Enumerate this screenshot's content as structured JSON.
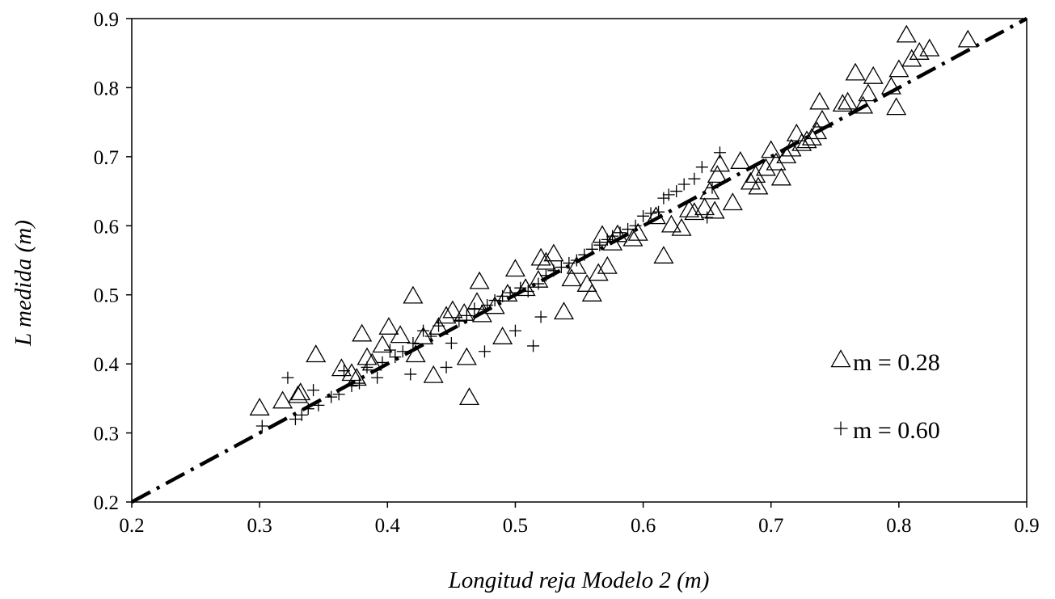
{
  "chart_data": {
    "type": "scatter",
    "xlabel": "Longitud reja Modelo 2 (m)",
    "ylabel": "L medida  (m)",
    "xlim": [
      0.2,
      0.9
    ],
    "ylim": [
      0.2,
      0.9
    ],
    "xticks": [
      "0.2",
      "0.3",
      "0.4",
      "0.5",
      "0.6",
      "0.7",
      "0.8",
      "0.9"
    ],
    "yticks": [
      "0.2",
      "0.3",
      "0.4",
      "0.5",
      "0.6",
      "0.7",
      "0.8",
      "0.9"
    ],
    "grid": false,
    "legend_position": "right",
    "reference_line": {
      "style": "dash-dot",
      "x": [
        0.2,
        0.9
      ],
      "y": [
        0.2,
        0.9
      ]
    },
    "series": [
      {
        "name": "m = 0.28",
        "marker": "triangle",
        "points": [
          [
            0.3,
            0.335
          ],
          [
            0.318,
            0.345
          ],
          [
            0.33,
            0.353
          ],
          [
            0.332,
            0.357
          ],
          [
            0.344,
            0.412
          ],
          [
            0.364,
            0.392
          ],
          [
            0.372,
            0.385
          ],
          [
            0.376,
            0.378
          ],
          [
            0.38,
            0.442
          ],
          [
            0.384,
            0.408
          ],
          [
            0.388,
            0.4
          ],
          [
            0.396,
            0.426
          ],
          [
            0.401,
            0.452
          ],
          [
            0.41,
            0.44
          ],
          [
            0.42,
            0.497
          ],
          [
            0.422,
            0.412
          ],
          [
            0.428,
            0.438
          ],
          [
            0.436,
            0.382
          ],
          [
            0.44,
            0.452
          ],
          [
            0.446,
            0.468
          ],
          [
            0.451,
            0.476
          ],
          [
            0.46,
            0.472
          ],
          [
            0.462,
            0.408
          ],
          [
            0.464,
            0.35
          ],
          [
            0.47,
            0.488
          ],
          [
            0.472,
            0.518
          ],
          [
            0.474,
            0.47
          ],
          [
            0.484,
            0.482
          ],
          [
            0.49,
            0.438
          ],
          [
            0.494,
            0.5
          ],
          [
            0.5,
            0.536
          ],
          [
            0.508,
            0.508
          ],
          [
            0.518,
            0.52
          ],
          [
            0.52,
            0.552
          ],
          [
            0.524,
            0.546
          ],
          [
            0.53,
            0.558
          ],
          [
            0.538,
            0.474
          ],
          [
            0.544,
            0.522
          ],
          [
            0.548,
            0.54
          ],
          [
            0.556,
            0.514
          ],
          [
            0.56,
            0.5
          ],
          [
            0.565,
            0.53
          ],
          [
            0.568,
            0.585
          ],
          [
            0.572,
            0.54
          ],
          [
            0.576,
            0.574
          ],
          [
            0.58,
            0.586
          ],
          [
            0.592,
            0.58
          ],
          [
            0.596,
            0.588
          ],
          [
            0.61,
            0.612
          ],
          [
            0.616,
            0.555
          ],
          [
            0.622,
            0.6
          ],
          [
            0.63,
            0.595
          ],
          [
            0.636,
            0.622
          ],
          [
            0.64,
            0.618
          ],
          [
            0.648,
            0.625
          ],
          [
            0.652,
            0.648
          ],
          [
            0.656,
            0.62
          ],
          [
            0.658,
            0.672
          ],
          [
            0.66,
            0.688
          ],
          [
            0.67,
            0.632
          ],
          [
            0.676,
            0.692
          ],
          [
            0.684,
            0.662
          ],
          [
            0.688,
            0.672
          ],
          [
            0.69,
            0.655
          ],
          [
            0.696,
            0.682
          ],
          [
            0.7,
            0.708
          ],
          [
            0.704,
            0.69
          ],
          [
            0.708,
            0.668
          ],
          [
            0.712,
            0.7
          ],
          [
            0.716,
            0.71
          ],
          [
            0.72,
            0.732
          ],
          [
            0.724,
            0.718
          ],
          [
            0.728,
            0.722
          ],
          [
            0.732,
            0.726
          ],
          [
            0.736,
            0.735
          ],
          [
            0.738,
            0.778
          ],
          [
            0.74,
            0.752
          ],
          [
            0.756,
            0.775
          ],
          [
            0.76,
            0.778
          ],
          [
            0.766,
            0.82
          ],
          [
            0.772,
            0.772
          ],
          [
            0.776,
            0.79
          ],
          [
            0.78,
            0.815
          ],
          [
            0.794,
            0.8
          ],
          [
            0.798,
            0.77
          ],
          [
            0.8,
            0.825
          ],
          [
            0.806,
            0.875
          ],
          [
            0.81,
            0.84
          ],
          [
            0.816,
            0.85
          ],
          [
            0.824,
            0.855
          ],
          [
            0.854,
            0.868
          ]
        ]
      },
      {
        "name": "m = 0.60",
        "marker": "plus",
        "points": [
          [
            0.302,
            0.31
          ],
          [
            0.322,
            0.38
          ],
          [
            0.328,
            0.32
          ],
          [
            0.333,
            0.326
          ],
          [
            0.338,
            0.335
          ],
          [
            0.342,
            0.362
          ],
          [
            0.346,
            0.34
          ],
          [
            0.356,
            0.352
          ],
          [
            0.362,
            0.356
          ],
          [
            0.366,
            0.39
          ],
          [
            0.372,
            0.368
          ],
          [
            0.378,
            0.372
          ],
          [
            0.384,
            0.395
          ],
          [
            0.392,
            0.38
          ],
          [
            0.396,
            0.402
          ],
          [
            0.402,
            0.42
          ],
          [
            0.406,
            0.41
          ],
          [
            0.412,
            0.418
          ],
          [
            0.418,
            0.385
          ],
          [
            0.42,
            0.43
          ],
          [
            0.428,
            0.448
          ],
          [
            0.434,
            0.44
          ],
          [
            0.44,
            0.455
          ],
          [
            0.446,
            0.395
          ],
          [
            0.45,
            0.43
          ],
          [
            0.456,
            0.462
          ],
          [
            0.462,
            0.47
          ],
          [
            0.468,
            0.48
          ],
          [
            0.476,
            0.418
          ],
          [
            0.478,
            0.485
          ],
          [
            0.484,
            0.492
          ],
          [
            0.49,
            0.498
          ],
          [
            0.496,
            0.503
          ],
          [
            0.5,
            0.448
          ],
          [
            0.504,
            0.51
          ],
          [
            0.51,
            0.505
          ],
          [
            0.514,
            0.426
          ],
          [
            0.518,
            0.516
          ],
          [
            0.52,
            0.468
          ],
          [
            0.524,
            0.528
          ],
          [
            0.53,
            0.535
          ],
          [
            0.536,
            0.54
          ],
          [
            0.542,
            0.546
          ],
          [
            0.548,
            0.55
          ],
          [
            0.554,
            0.558
          ],
          [
            0.56,
            0.566
          ],
          [
            0.566,
            0.572
          ],
          [
            0.572,
            0.58
          ],
          [
            0.576,
            0.585
          ],
          [
            0.582,
            0.59
          ],
          [
            0.588,
            0.595
          ],
          [
            0.594,
            0.6
          ],
          [
            0.6,
            0.614
          ],
          [
            0.606,
            0.618
          ],
          [
            0.612,
            0.62
          ],
          [
            0.616,
            0.64
          ],
          [
            0.62,
            0.645
          ],
          [
            0.626,
            0.65
          ],
          [
            0.632,
            0.66
          ],
          [
            0.64,
            0.668
          ],
          [
            0.646,
            0.685
          ],
          [
            0.65,
            0.612
          ],
          [
            0.654,
            0.655
          ],
          [
            0.66,
            0.706
          ]
        ]
      }
    ],
    "annotations": [
      {
        "marker": "triangle",
        "text": "m = 0.28"
      },
      {
        "marker": "plus",
        "text": "m = 0.60"
      }
    ]
  }
}
